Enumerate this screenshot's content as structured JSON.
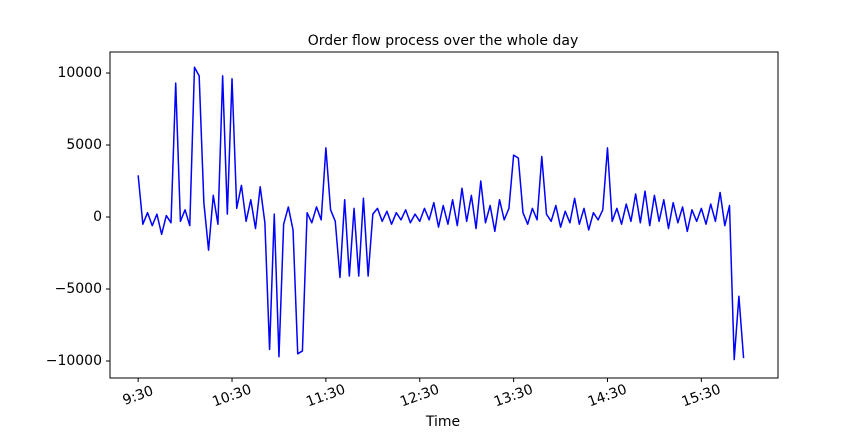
{
  "chart_data": {
    "type": "line",
    "title": "Order flow process over the whole day",
    "x_label": "Time",
    "x": [
      "9:30",
      "9:33",
      "9:36",
      "9:39",
      "9:42",
      "9:45",
      "9:48",
      "9:51",
      "9:54",
      "9:57",
      "10:00",
      "10:03",
      "10:06",
      "10:09",
      "10:12",
      "10:15",
      "10:18",
      "10:21",
      "10:24",
      "10:27",
      "10:30",
      "10:33",
      "10:36",
      "10:39",
      "10:42",
      "10:45",
      "10:48",
      "10:51",
      "10:54",
      "10:57",
      "11:00",
      "11:03",
      "11:06",
      "11:09",
      "11:12",
      "11:15",
      "11:18",
      "11:21",
      "11:24",
      "11:27",
      "11:30",
      "11:33",
      "11:36",
      "11:39",
      "11:42",
      "11:45",
      "11:48",
      "11:51",
      "11:54",
      "11:57",
      "12:00",
      "12:03",
      "12:06",
      "12:09",
      "12:12",
      "12:15",
      "12:18",
      "12:21",
      "12:24",
      "12:27",
      "12:30",
      "12:33",
      "12:36",
      "12:39",
      "12:42",
      "12:45",
      "12:48",
      "12:51",
      "12:54",
      "12:57",
      "13:00",
      "13:03",
      "13:06",
      "13:09",
      "13:12",
      "13:15",
      "13:18",
      "13:21",
      "13:24",
      "13:27",
      "13:30",
      "13:33",
      "13:36",
      "13:39",
      "13:42",
      "13:45",
      "13:48",
      "13:51",
      "13:54",
      "13:57",
      "14:00",
      "14:03",
      "14:06",
      "14:09",
      "14:12",
      "14:15",
      "14:18",
      "14:21",
      "14:24",
      "14:27",
      "14:30",
      "14:33",
      "14:36",
      "14:39",
      "14:42",
      "14:45",
      "14:48",
      "14:51",
      "14:54",
      "14:57",
      "15:00",
      "15:03",
      "15:06",
      "15:09",
      "15:12",
      "15:15",
      "15:18",
      "15:21",
      "15:24",
      "15:27",
      "15:30",
      "15:33",
      "15:36",
      "15:39",
      "15:42",
      "15:45",
      "15:48",
      "15:51",
      "15:54",
      "15:57"
    ],
    "series": [
      {
        "color": "#0000ff",
        "values": [
          2900,
          -500,
          300,
          -600,
          200,
          -1200,
          100,
          -400,
          9300,
          -300,
          500,
          -600,
          10400,
          9800,
          1000,
          -2300,
          1500,
          -500,
          9800,
          200,
          9600,
          600,
          2200,
          -300,
          1200,
          -800,
          2100,
          -400,
          -9200,
          200,
          -9700,
          -500,
          700,
          -900,
          -9500,
          -9300,
          300,
          -400,
          700,
          -200,
          4800,
          500,
          -300,
          -4200,
          1200,
          -4100,
          600,
          -4100,
          1300,
          -4100,
          200,
          600,
          -300,
          400,
          -500,
          300,
          -200,
          500,
          -400,
          200,
          -300,
          600,
          -200,
          1000,
          -700,
          800,
          -500,
          1200,
          -600,
          2000,
          -300,
          1500,
          -800,
          2500,
          -400,
          800,
          -1000,
          1200,
          -200,
          600,
          4300,
          4100,
          300,
          -500,
          600,
          -200,
          4200,
          200,
          -300,
          800,
          -700,
          400,
          -400,
          1300,
          -500,
          600,
          -900,
          300,
          -200,
          500,
          4800,
          -300,
          600,
          -500,
          900,
          -300,
          1600,
          -400,
          1800,
          -600,
          1500,
          -300,
          1200,
          -800,
          1000,
          -400,
          700,
          -1000,
          500,
          -300,
          600,
          -500,
          900,
          -300,
          1700,
          -600,
          800,
          -9900,
          -5500,
          -9800
        ]
      }
    ],
    "xlim": [
      "9:12",
      "16:19"
    ],
    "xticks": [
      "9:30",
      "10:30",
      "11:30",
      "12:30",
      "13:30",
      "14:30",
      "15:30"
    ],
    "ylim": [
      -11180,
      11460
    ],
    "yticks": [
      {
        "value": -10000,
        "label": "−10000"
      },
      {
        "value": -5000,
        "label": "−5000"
      },
      0,
      5000,
      10000
    ]
  }
}
